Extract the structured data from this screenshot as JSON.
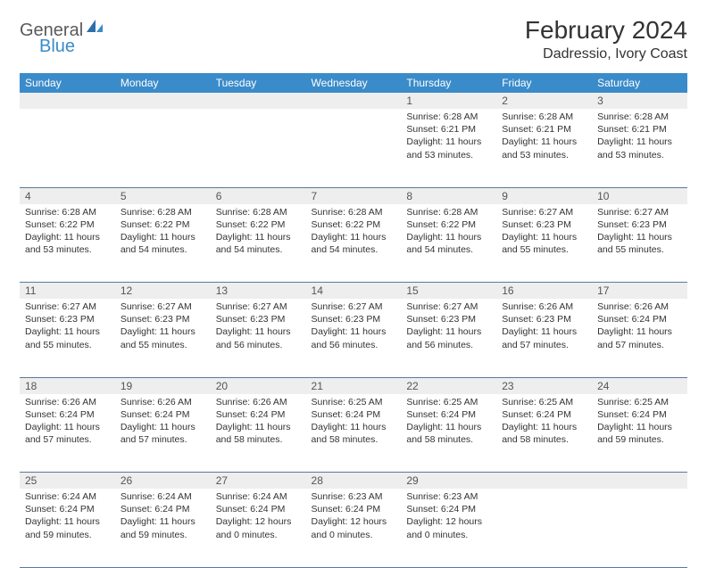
{
  "logo": {
    "text_general": "General",
    "text_blue": "Blue"
  },
  "title": "February 2024",
  "location": "Dadressio, Ivory Coast",
  "colors": {
    "header_bg": "#3a8bc9",
    "header_text": "#ffffff",
    "daynum_bg": "#eeeeee",
    "border": "#5a7a9a",
    "text": "#333333",
    "logo_gray": "#5a5a5a",
    "logo_blue": "#3a8bc9"
  },
  "day_headers": [
    "Sunday",
    "Monday",
    "Tuesday",
    "Wednesday",
    "Thursday",
    "Friday",
    "Saturday"
  ],
  "weeks": [
    [
      null,
      null,
      null,
      null,
      {
        "n": "1",
        "sr": "6:28 AM",
        "ss": "6:21 PM",
        "dl": "11 hours and 53 minutes."
      },
      {
        "n": "2",
        "sr": "6:28 AM",
        "ss": "6:21 PM",
        "dl": "11 hours and 53 minutes."
      },
      {
        "n": "3",
        "sr": "6:28 AM",
        "ss": "6:21 PM",
        "dl": "11 hours and 53 minutes."
      }
    ],
    [
      {
        "n": "4",
        "sr": "6:28 AM",
        "ss": "6:22 PM",
        "dl": "11 hours and 53 minutes."
      },
      {
        "n": "5",
        "sr": "6:28 AM",
        "ss": "6:22 PM",
        "dl": "11 hours and 54 minutes."
      },
      {
        "n": "6",
        "sr": "6:28 AM",
        "ss": "6:22 PM",
        "dl": "11 hours and 54 minutes."
      },
      {
        "n": "7",
        "sr": "6:28 AM",
        "ss": "6:22 PM",
        "dl": "11 hours and 54 minutes."
      },
      {
        "n": "8",
        "sr": "6:28 AM",
        "ss": "6:22 PM",
        "dl": "11 hours and 54 minutes."
      },
      {
        "n": "9",
        "sr": "6:27 AM",
        "ss": "6:23 PM",
        "dl": "11 hours and 55 minutes."
      },
      {
        "n": "10",
        "sr": "6:27 AM",
        "ss": "6:23 PM",
        "dl": "11 hours and 55 minutes."
      }
    ],
    [
      {
        "n": "11",
        "sr": "6:27 AM",
        "ss": "6:23 PM",
        "dl": "11 hours and 55 minutes."
      },
      {
        "n": "12",
        "sr": "6:27 AM",
        "ss": "6:23 PM",
        "dl": "11 hours and 55 minutes."
      },
      {
        "n": "13",
        "sr": "6:27 AM",
        "ss": "6:23 PM",
        "dl": "11 hours and 56 minutes."
      },
      {
        "n": "14",
        "sr": "6:27 AM",
        "ss": "6:23 PM",
        "dl": "11 hours and 56 minutes."
      },
      {
        "n": "15",
        "sr": "6:27 AM",
        "ss": "6:23 PM",
        "dl": "11 hours and 56 minutes."
      },
      {
        "n": "16",
        "sr": "6:26 AM",
        "ss": "6:23 PM",
        "dl": "11 hours and 57 minutes."
      },
      {
        "n": "17",
        "sr": "6:26 AM",
        "ss": "6:24 PM",
        "dl": "11 hours and 57 minutes."
      }
    ],
    [
      {
        "n": "18",
        "sr": "6:26 AM",
        "ss": "6:24 PM",
        "dl": "11 hours and 57 minutes."
      },
      {
        "n": "19",
        "sr": "6:26 AM",
        "ss": "6:24 PM",
        "dl": "11 hours and 57 minutes."
      },
      {
        "n": "20",
        "sr": "6:26 AM",
        "ss": "6:24 PM",
        "dl": "11 hours and 58 minutes."
      },
      {
        "n": "21",
        "sr": "6:25 AM",
        "ss": "6:24 PM",
        "dl": "11 hours and 58 minutes."
      },
      {
        "n": "22",
        "sr": "6:25 AM",
        "ss": "6:24 PM",
        "dl": "11 hours and 58 minutes."
      },
      {
        "n": "23",
        "sr": "6:25 AM",
        "ss": "6:24 PM",
        "dl": "11 hours and 58 minutes."
      },
      {
        "n": "24",
        "sr": "6:25 AM",
        "ss": "6:24 PM",
        "dl": "11 hours and 59 minutes."
      }
    ],
    [
      {
        "n": "25",
        "sr": "6:24 AM",
        "ss": "6:24 PM",
        "dl": "11 hours and 59 minutes."
      },
      {
        "n": "26",
        "sr": "6:24 AM",
        "ss": "6:24 PM",
        "dl": "11 hours and 59 minutes."
      },
      {
        "n": "27",
        "sr": "6:24 AM",
        "ss": "6:24 PM",
        "dl": "12 hours and 0 minutes."
      },
      {
        "n": "28",
        "sr": "6:23 AM",
        "ss": "6:24 PM",
        "dl": "12 hours and 0 minutes."
      },
      {
        "n": "29",
        "sr": "6:23 AM",
        "ss": "6:24 PM",
        "dl": "12 hours and 0 minutes."
      },
      null,
      null
    ]
  ],
  "labels": {
    "sunrise": "Sunrise:",
    "sunset": "Sunset:",
    "daylight": "Daylight:"
  }
}
